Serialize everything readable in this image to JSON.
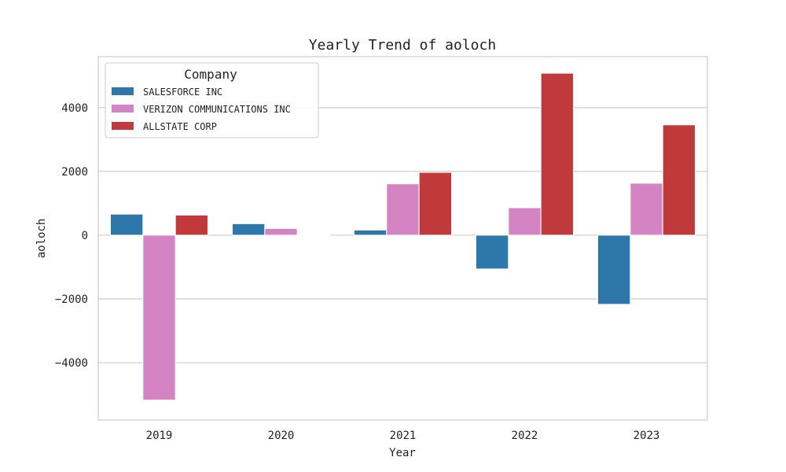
{
  "chart_data": {
    "type": "bar",
    "title": "Yearly Trend of aoloch",
    "xlabel": "Year",
    "ylabel": "aoloch",
    "categories": [
      "2019",
      "2020",
      "2021",
      "2022",
      "2023"
    ],
    "ylim": [
      -5800,
      5600
    ],
    "yticks": [
      -4000,
      -2000,
      0,
      2000,
      4000
    ],
    "ytick_labels": [
      "−4000",
      "−2000",
      "0",
      "2000",
      "4000"
    ],
    "grid": "horizontal",
    "legend": {
      "title": "Company",
      "placement": "top-left"
    },
    "series": [
      {
        "name": "SALESFORCE INC",
        "color": "#2e77ab",
        "values": [
          660,
          360,
          160,
          -1060,
          -2170
        ]
      },
      {
        "name": "VERIZON COMMUNICATIONS INC",
        "color": "#d584c3",
        "values": [
          -5170,
          210,
          1610,
          860,
          1630
        ]
      },
      {
        "name": "ALLSTATE CORP",
        "color": "#c0393b",
        "values": [
          630,
          10,
          1970,
          5080,
          3460
        ]
      }
    ]
  }
}
